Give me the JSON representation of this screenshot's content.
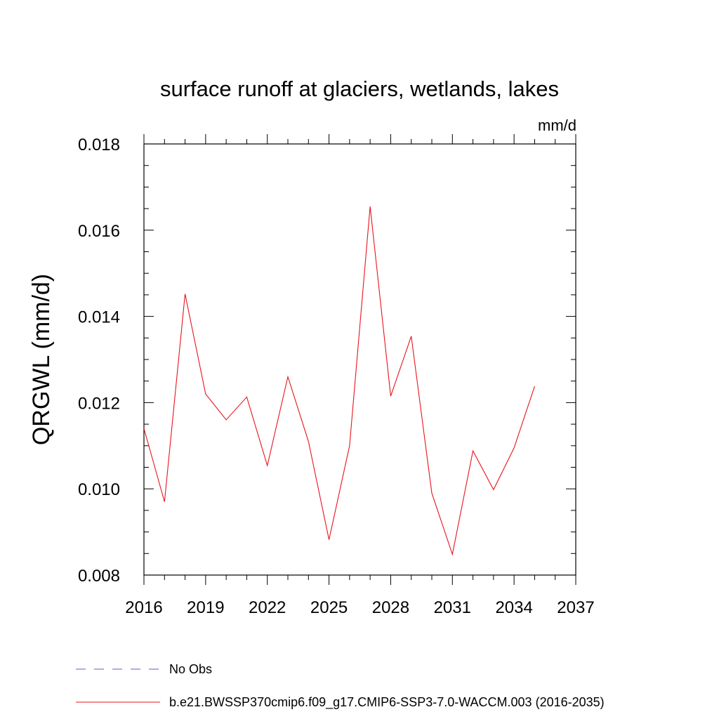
{
  "chart_data": {
    "type": "line",
    "title": "surface runoff at glaciers, wetlands, lakes",
    "units_label": "mm/d",
    "ylabel": "QRGWL  (mm/d)",
    "xlabel": "",
    "xlim": [
      2016,
      2037
    ],
    "ylim": [
      0.008,
      0.018
    ],
    "x_ticks": [
      2016,
      2019,
      2022,
      2025,
      2028,
      2031,
      2034,
      2037
    ],
    "x_tick_labels": [
      "2016",
      "2019",
      "2022",
      "2025",
      "2028",
      "2031",
      "2034",
      "2037"
    ],
    "y_ticks": [
      0.008,
      0.01,
      0.012,
      0.014,
      0.016,
      0.018
    ],
    "y_tick_labels": [
      "0.008",
      "0.010",
      "0.012",
      "0.014",
      "0.016",
      "0.018"
    ],
    "grid": false,
    "legend_position": "bottom",
    "series": [
      {
        "name": "No Obs",
        "color": "#6a5acd",
        "dash": true,
        "x": [],
        "values": []
      },
      {
        "name": "b.e21.BWSSP370cmip6.f09_g17.CMIP6-SSP3-7.0-WACCM.003 (2016-2035)",
        "color": "#e8141e",
        "dash": false,
        "x": [
          2016,
          2017,
          2018,
          2019,
          2020,
          2021,
          2022,
          2023,
          2024,
          2025,
          2026,
          2027,
          2028,
          2029,
          2030,
          2031,
          2032,
          2033,
          2034,
          2035
        ],
        "values": [
          0.0114,
          0.0097,
          0.01452,
          0.0122,
          0.0116,
          0.01213,
          0.01054,
          0.0126,
          0.0111,
          0.00882,
          0.011,
          0.01655,
          0.01215,
          0.01354,
          0.0099,
          0.00848,
          0.01088,
          0.00998,
          0.01095,
          0.01238
        ]
      }
    ]
  }
}
